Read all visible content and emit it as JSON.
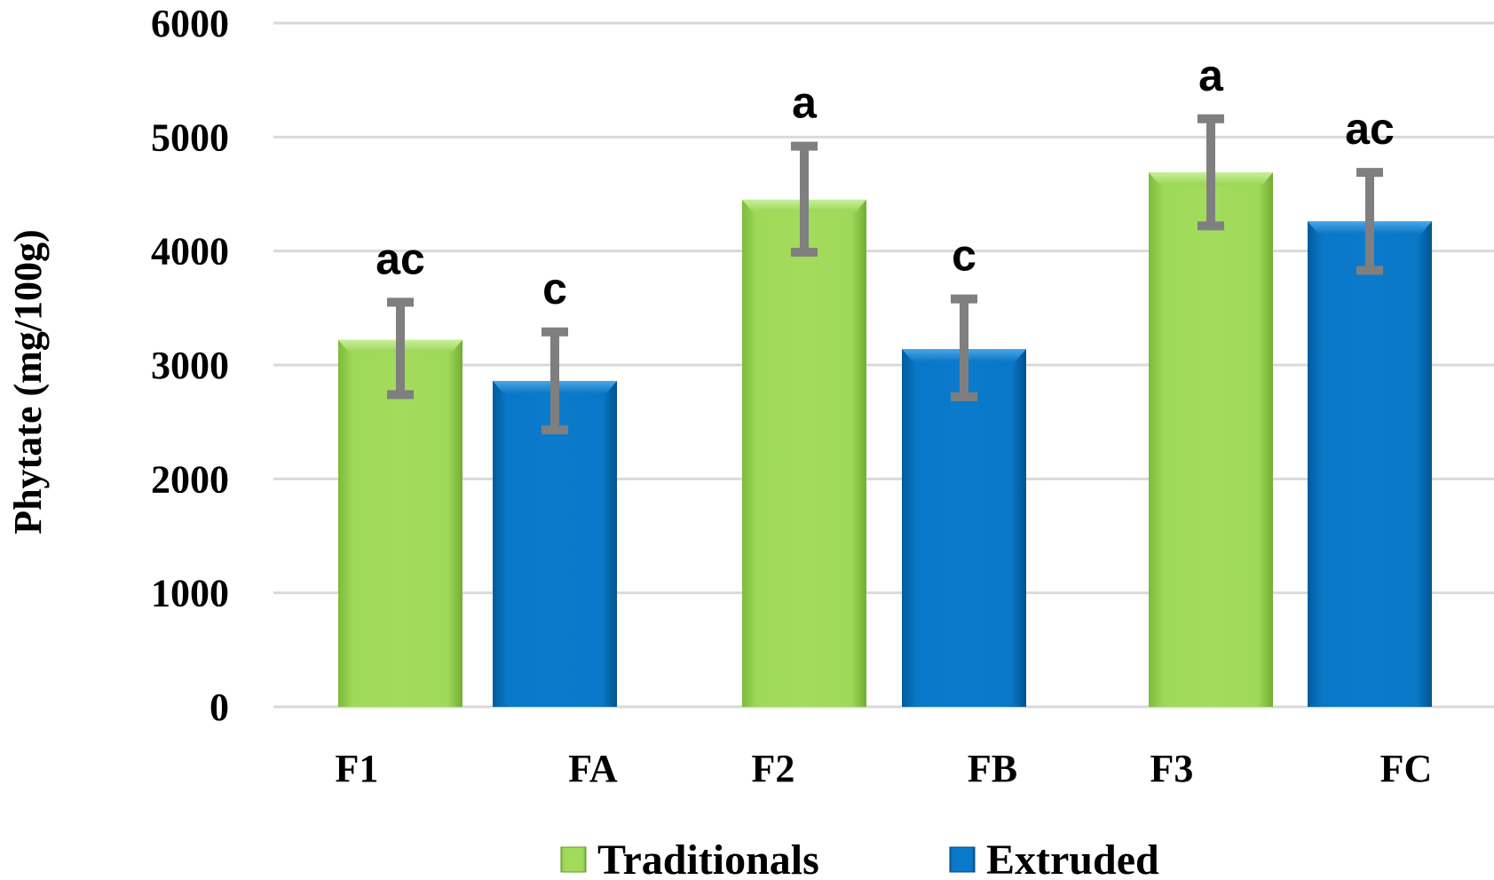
{
  "chart_data": {
    "type": "bar",
    "title": "",
    "xlabel": "",
    "ylabel": "Phytate (mg/100g)",
    "ylim": [
      0,
      6000
    ],
    "yticks": [
      0,
      1000,
      2000,
      3000,
      4000,
      5000,
      6000
    ],
    "grid": true,
    "legend_position": "bottom",
    "categories": [
      "F1",
      "FA",
      "F2",
      "FB",
      "F3",
      "FC"
    ],
    "series": [
      {
        "name": "Traditionals",
        "color": "#92d050"
      },
      {
        "name": "Extruded",
        "color": "#0070c0"
      }
    ],
    "bars": [
      {
        "category": "F1",
        "series": "Traditionals",
        "value": 3220,
        "error_low": 2740,
        "error_high": 3550,
        "significance": "ac"
      },
      {
        "category": "FA",
        "series": "Extruded",
        "value": 2860,
        "error_low": 2430,
        "error_high": 3290,
        "significance": "c"
      },
      {
        "category": "F2",
        "series": "Traditionals",
        "value": 4450,
        "error_low": 3990,
        "error_high": 4920,
        "significance": "a"
      },
      {
        "category": "FB",
        "series": "Extruded",
        "value": 3140,
        "error_low": 2720,
        "error_high": 3580,
        "significance": "c"
      },
      {
        "category": "F3",
        "series": "Traditionals",
        "value": 4690,
        "error_low": 4220,
        "error_high": 5160,
        "significance": "a"
      },
      {
        "category": "FC",
        "series": "Extruded",
        "value": 4260,
        "error_low": 3830,
        "error_high": 4690,
        "significance": "ac"
      }
    ]
  }
}
